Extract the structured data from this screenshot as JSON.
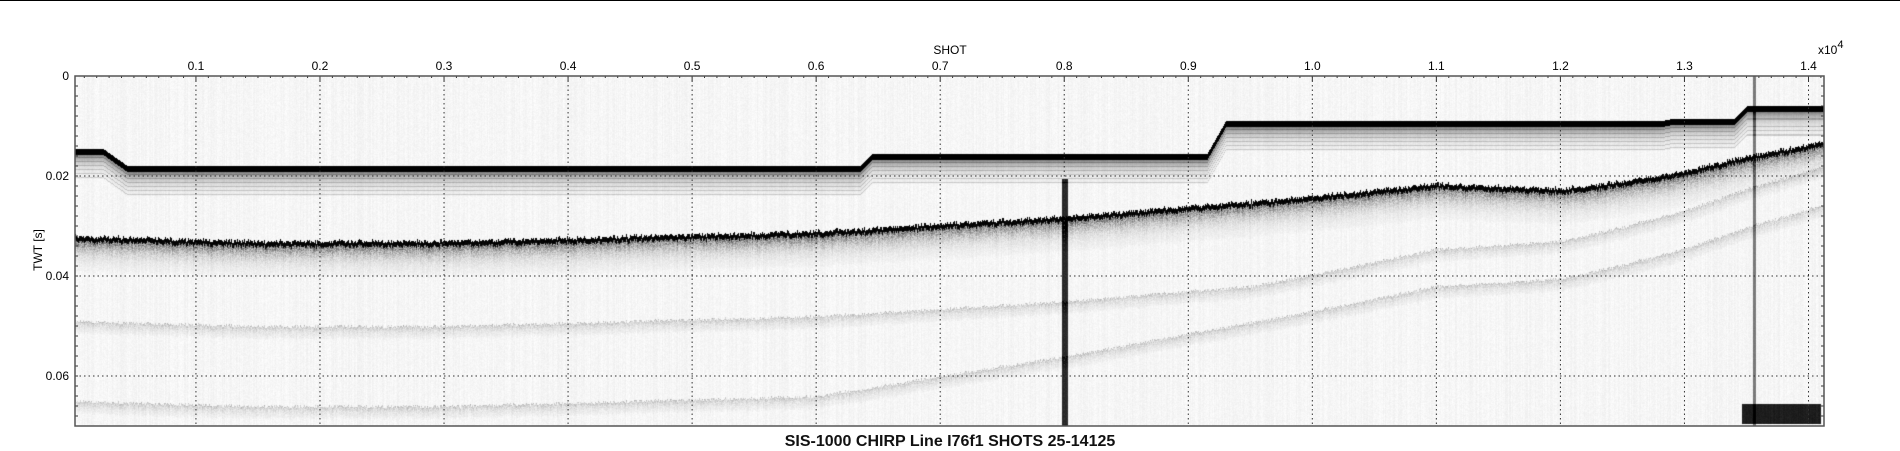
{
  "chart_data": {
    "type": "heatmap",
    "title": "SIS-1000 CHIRP Line I76f1 SHOTS 25-14125",
    "xlabel": "SHOT",
    "ylabel": "TWT [s]",
    "x_multiplier": "x10",
    "x_multiplier_exp": "4",
    "xlim": [
      25,
      14125
    ],
    "ylim": [
      0,
      0.07
    ],
    "y_inverted": true,
    "x_ticks": [
      1000,
      2000,
      3000,
      4000,
      5000,
      6000,
      7000,
      8000,
      9000,
      10000,
      11000,
      12000,
      13000,
      14000
    ],
    "x_tick_labels": [
      "0.1",
      "0.2",
      "0.3",
      "0.4",
      "0.5",
      "0.6",
      "0.7",
      "0.8",
      "0.9",
      "1.0",
      "1.1",
      "1.2",
      "1.3",
      "1.4"
    ],
    "y_ticks": [
      0,
      0.02,
      0.04,
      0.06
    ],
    "y_tick_labels": [
      "0",
      "0.02",
      "0.04",
      "0.06"
    ],
    "grid": true,
    "colormap": "grayscale (white low, black high amplitude)",
    "horizons": [
      {
        "shot": [
          25,
          250,
          450,
          6350,
          6450,
          9150,
          9300,
          12800,
          12900,
          13400,
          13500,
          14125
        ],
        "twt": [
          0.0145,
          0.0145,
          0.018,
          0.018,
          0.0155,
          0.0155,
          0.009,
          0.009,
          0.0085,
          0.0085,
          0.006,
          0.006
        ]
      },
      {
        "shot": [
          25,
          1500,
          3000,
          4500,
          6000,
          7000,
          8000,
          9000,
          10000,
          11000,
          12000,
          12500,
          13000,
          13500,
          14125
        ],
        "twt": [
          0.032,
          0.033,
          0.033,
          0.032,
          0.031,
          0.0295,
          0.028,
          0.026,
          0.024,
          0.0215,
          0.0225,
          0.021,
          0.019,
          0.016,
          0.013
        ]
      }
    ]
  }
}
